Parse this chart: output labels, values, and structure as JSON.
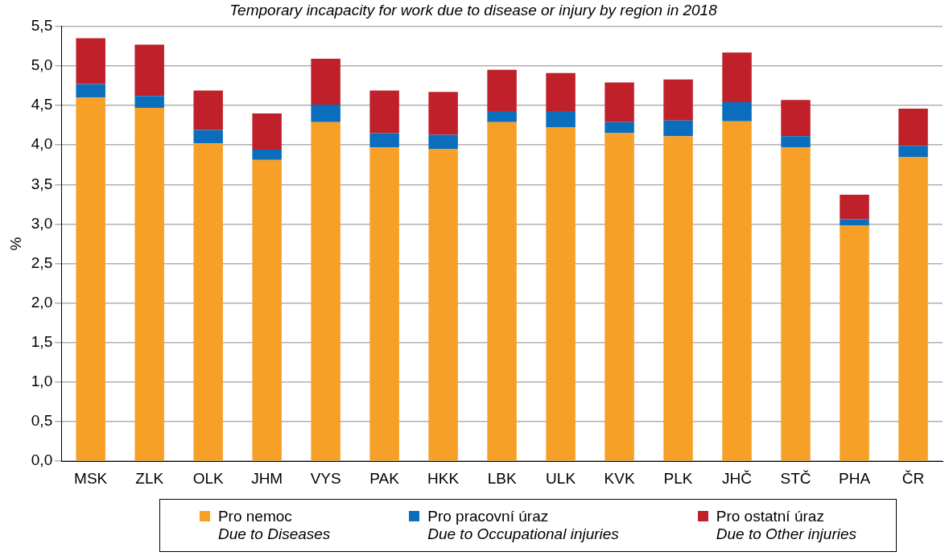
{
  "chart_data": {
    "type": "bar",
    "title": "Temporary incapacity for work due to disease or injury by region in 2018",
    "ylabel": "%",
    "categories": [
      "MSK",
      "ZLK",
      "OLK",
      "JHM",
      "VYS",
      "PAK",
      "HKK",
      "LBK",
      "ULK",
      "KVK",
      "PLK",
      "JHČ",
      "STČ",
      "PHA",
      "ČR"
    ],
    "series": [
      {
        "name": "Pro nemoc\nDue to Diseases",
        "color": "#f7a028",
        "values": [
          4.6,
          4.47,
          4.02,
          3.81,
          4.29,
          3.97,
          3.95,
          4.29,
          4.22,
          4.15,
          4.11,
          4.3,
          3.97,
          2.98,
          3.85
        ]
      },
      {
        "name": "Pro pracovní úraz\nDue to Occupational injuries",
        "color": "#0a6ebd",
        "values": [
          0.17,
          0.15,
          0.17,
          0.13,
          0.22,
          0.18,
          0.18,
          0.14,
          0.21,
          0.14,
          0.2,
          0.24,
          0.14,
          0.08,
          0.14
        ]
      },
      {
        "name": "Pro ostatní úraz\nDue to Other injuries",
        "color": "#c0202a",
        "values": [
          0.58,
          0.65,
          0.5,
          0.46,
          0.58,
          0.54,
          0.54,
          0.52,
          0.48,
          0.5,
          0.52,
          0.63,
          0.46,
          0.31,
          0.47
        ]
      }
    ],
    "stacked": true,
    "ylim": [
      0,
      5.5
    ],
    "yticks": [
      {
        "value": 0,
        "label": "0,0"
      },
      {
        "value": 0.5,
        "label": "0,5"
      },
      {
        "value": 1,
        "label": "1,0"
      },
      {
        "value": 1.5,
        "label": "1,5"
      },
      {
        "value": 2,
        "label": "2,0"
      },
      {
        "value": 2.5,
        "label": "2,5"
      },
      {
        "value": 3,
        "label": "3,0"
      },
      {
        "value": 3.5,
        "label": "3,5"
      },
      {
        "value": 4,
        "label": "4,0"
      },
      {
        "value": 4.5,
        "label": "4,5"
      },
      {
        "value": 5,
        "label": "5,0"
      },
      {
        "value": 5.5,
        "label": "5,5"
      }
    ],
    "grid": "y",
    "legend": "bottom"
  }
}
